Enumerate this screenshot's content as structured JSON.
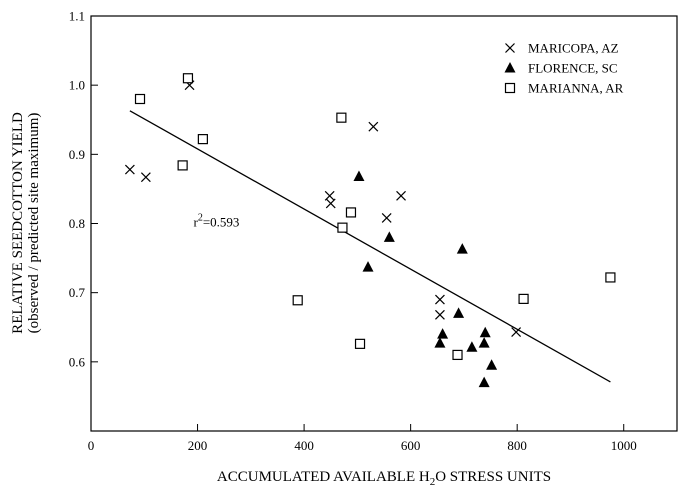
{
  "chart_data": {
    "type": "scatter",
    "xlabel": "ACCUMULATED AVAILABLE H2O STRESS UNITS",
    "ylabel_line1": "RELATIVE SEEDCOTTON YIELD",
    "ylabel_line2": "(observed / predicted site maximum)",
    "xlim": [
      0,
      1100
    ],
    "ylim": [
      0.5,
      1.1
    ],
    "x_ticks": [
      0,
      200,
      400,
      600,
      800,
      1000
    ],
    "y_ticks": [
      0.6,
      0.7,
      0.8,
      0.9,
      1.0,
      1.1
    ],
    "x_tick_labels": [
      "0",
      "200",
      "400",
      "600",
      "800",
      "1000"
    ],
    "y_tick_labels": [
      "0.6",
      "0.7",
      "0.8",
      "0.9",
      "1.0",
      "1.1"
    ],
    "legend_position": "top-right",
    "series": [
      {
        "name": "MARICOPA, AZ",
        "marker": "x",
        "points": [
          [
            73,
            0.878
          ],
          [
            103,
            0.867
          ],
          [
            185,
            1.0
          ],
          [
            448,
            0.84
          ],
          [
            450,
            0.829
          ],
          [
            530,
            0.94
          ],
          [
            555,
            0.808
          ],
          [
            582,
            0.84
          ],
          [
            655,
            0.69
          ],
          [
            655,
            0.668
          ],
          [
            798,
            0.643
          ]
        ]
      },
      {
        "name": "FLORENCE, SC",
        "marker": "triangle",
        "points": [
          [
            503,
            0.868
          ],
          [
            520,
            0.737
          ],
          [
            560,
            0.78
          ],
          [
            655,
            0.627
          ],
          [
            660,
            0.64
          ],
          [
            690,
            0.67
          ],
          [
            697,
            0.763
          ],
          [
            715,
            0.621
          ],
          [
            738,
            0.57
          ],
          [
            738,
            0.627
          ],
          [
            740,
            0.642
          ],
          [
            752,
            0.595
          ]
        ]
      },
      {
        "name": "MARIANNA, AR",
        "marker": "square",
        "points": [
          [
            92,
            0.98
          ],
          [
            172,
            0.884
          ],
          [
            182,
            1.01
          ],
          [
            210,
            0.922
          ],
          [
            388,
            0.689
          ],
          [
            470,
            0.953
          ],
          [
            472,
            0.794
          ],
          [
            488,
            0.816
          ],
          [
            505,
            0.626
          ],
          [
            688,
            0.61
          ],
          [
            812,
            0.691
          ],
          [
            975,
            0.722
          ]
        ]
      }
    ],
    "fit_line": {
      "x": [
        73,
        975
      ],
      "y": [
        0.963,
        0.571
      ]
    },
    "annotation": {
      "text": "r",
      "superscript": "2",
      "value_text": "=0.593",
      "x": 305,
      "y": 0.8
    }
  }
}
